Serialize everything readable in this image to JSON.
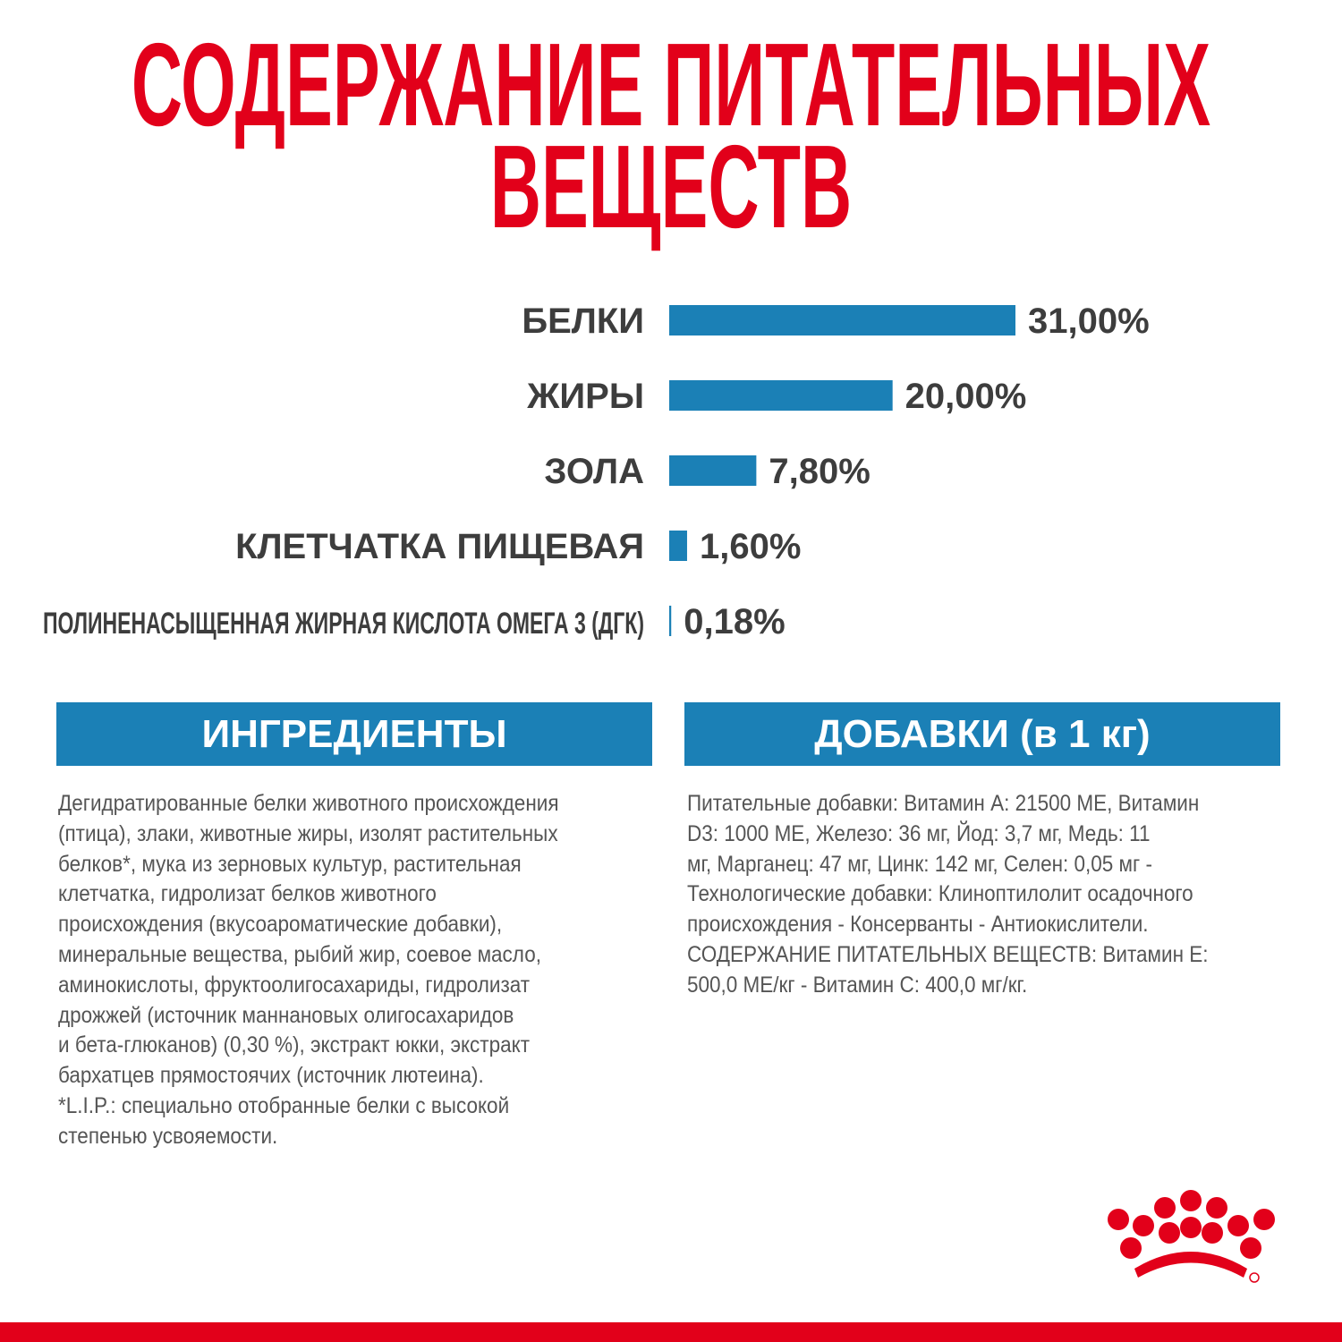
{
  "chart_data": {
    "type": "bar",
    "orientation": "horizontal",
    "title": "СОДЕРЖАНИЕ ПИТАТЕЛЬНЫХ ВЕЩЕСТВ",
    "categories": [
      "БЕЛКИ",
      "ЖИРЫ",
      "ЗОЛА",
      "КЛЕТЧАТКА ПИЩЕВАЯ",
      "ПОЛИНЕНАСЫЩЕННАЯ ЖИРНАЯ КИСЛОТА ОМЕГА 3 (ДГК)"
    ],
    "values": [
      31,
      20,
      7.8,
      1.6,
      0.18
    ],
    "value_labels": [
      "31,00%",
      "20,00%",
      "7,80%",
      "1,60%",
      "0,18%"
    ],
    "color": "#1b80b6"
  },
  "ingredients": {
    "title": "ИНГРЕДИЕНТЫ",
    "lines": [
      "Дегидратированные белки животного происхождения",
      "(птица), злаки, животные жиры, изолят растительных",
      "белков*, мука из зерновых культур, растительная",
      "клетчатка, гидролизат белков животного",
      "происхождения (вкусоароматические добавки),",
      "минеральные вещества, рыбий жир, соевое масло,",
      "аминокислоты, фруктоолигосахариды, гидролизат",
      "дрожжей (источник маннановых олигосахаридов",
      "и бета-глюканов) (0,30 %), экстракт юкки, экстракт",
      "бархатцев прямостоячих (источник лютеина).",
      "*L.I.P.: специально отобранные белки с высокой",
      "степенью усвояемости."
    ]
  },
  "additives": {
    "title": "ДОБАВКИ (в 1 кг)",
    "lines": [
      "Питательные добавки: Витамин A: 21500 МЕ, Витамин",
      "D3: 1000 МЕ, Железо: 36 мг, Йод: 3,7 мг, Медь: 11",
      "мг, Марганец: 47 мг, Цинк: 142 мг, Селен: 0,05 мг -",
      "Технологические добавки: Клиноптилолит осадочного",
      "происхождения - Консерванты - Антиокислители.",
      "СОДЕРЖАНИЕ ПИТАТЕЛЬНЫХ ВЕЩЕСТВ: Витамин E:",
      "500,0 МЕ/кг - Витамин C: 400,0 мг/кг."
    ]
  }
}
